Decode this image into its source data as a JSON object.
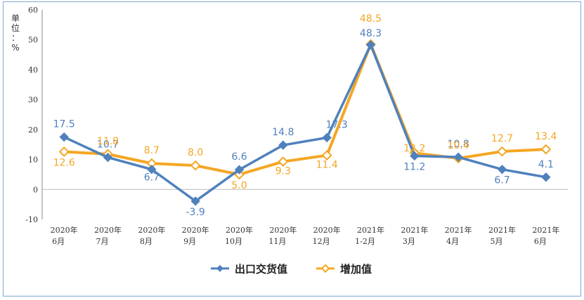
{
  "chart_data": {
    "type": "line",
    "unit_label": "单位：%",
    "categories": [
      [
        "2020年",
        "6月"
      ],
      [
        "2020年",
        "7月"
      ],
      [
        "2020年",
        "8月"
      ],
      [
        "2020年",
        "9月"
      ],
      [
        "2020年",
        "10月"
      ],
      [
        "2020年",
        "11月"
      ],
      [
        "2020年",
        "12月"
      ],
      [
        "2021年",
        "1-2月"
      ],
      [
        "2021年",
        "3月"
      ],
      [
        "2021年",
        "4月"
      ],
      [
        "2021年",
        "5月"
      ],
      [
        "2021年",
        "6月"
      ]
    ],
    "ylim": [
      -10,
      60
    ],
    "yticks": [
      -10,
      0,
      10,
      20,
      30,
      40,
      50,
      60
    ],
    "series": [
      {
        "name": "出口交货值",
        "color": "#4f81bd",
        "marker": "diamond-filled",
        "values": [
          17.5,
          10.7,
          6.7,
          -3.9,
          6.6,
          14.8,
          17.3,
          48.3,
          11.2,
          10.8,
          6.7,
          4.1
        ],
        "labels": [
          "17.5",
          "10.7",
          "6.7",
          "-3.9",
          "6.6",
          "14.8",
          "17.3",
          "48.3",
          "11.2",
          "10.8",
          "6.7",
          "4.1"
        ]
      },
      {
        "name": "增加值",
        "color": "#f5a623",
        "marker": "diamond-open",
        "values": [
          12.6,
          11.8,
          8.7,
          8.0,
          5.0,
          9.3,
          11.4,
          48.5,
          12.2,
          10.4,
          12.7,
          13.4
        ],
        "labels": [
          "12.6",
          "11.8",
          "8.7",
          "8.0",
          "5.0",
          "9.3",
          "11.4",
          "48.5",
          "12.2",
          "10.4",
          "12.7",
          "13.4"
        ]
      }
    ],
    "legend_position": "bottom-center"
  }
}
